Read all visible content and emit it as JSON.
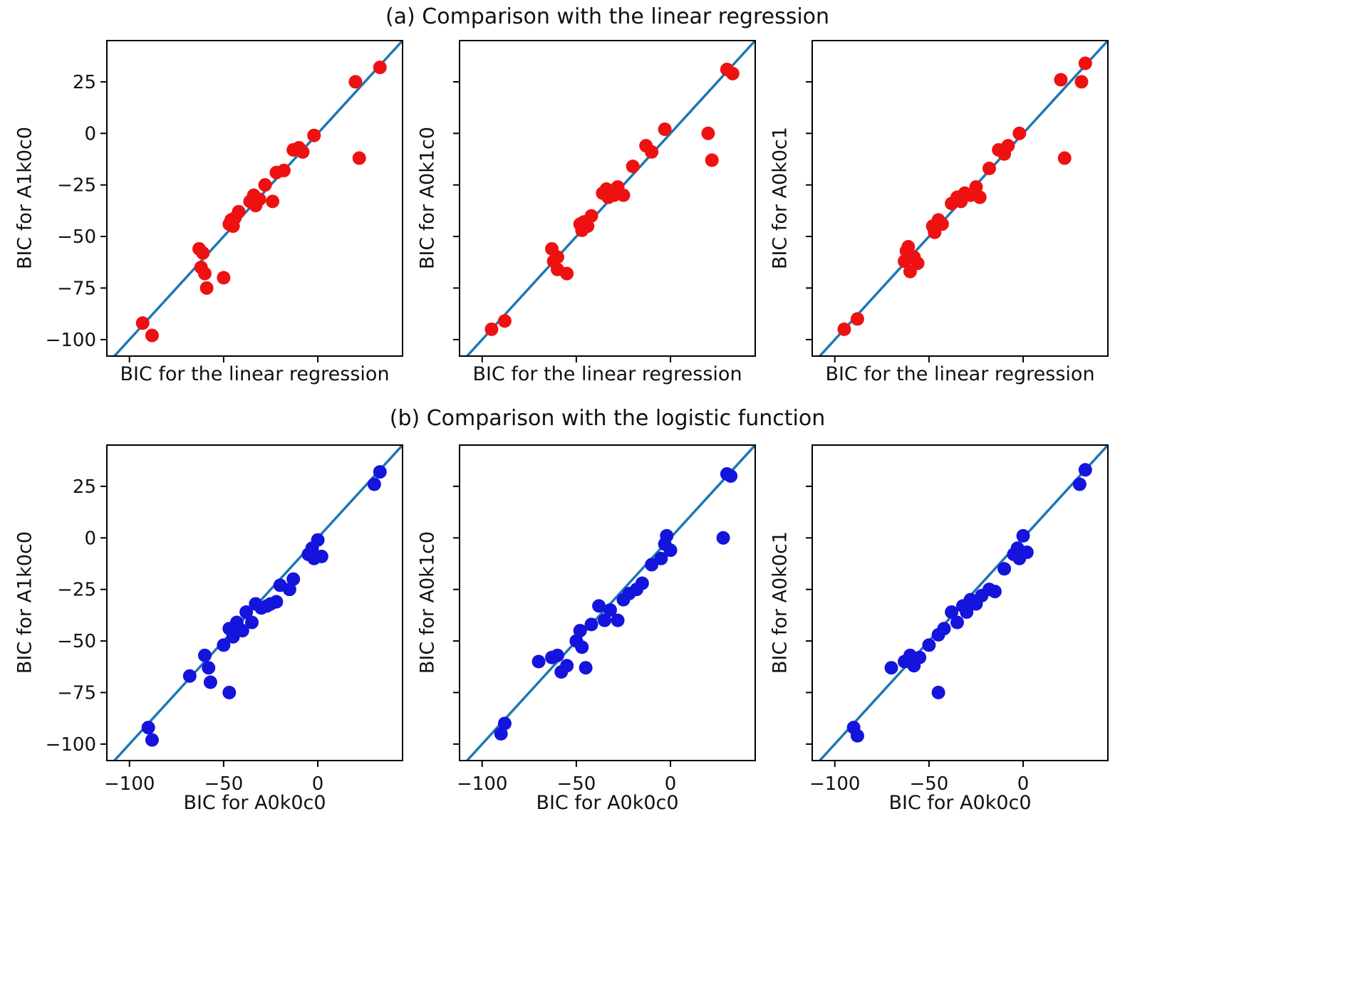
{
  "figure": {
    "row_a_title": "(a) Comparison with the linear regression",
    "row_b_title": "(b) Comparison with the logistic function",
    "background": "#ffffff"
  },
  "style": {
    "line_color": "#1f77b4",
    "red_marker": "#ee1111",
    "blue_marker": "#1414dd",
    "axis_color": "#000000"
  },
  "chart_data": [
    {
      "type": "scatter",
      "panel": "a1",
      "xlabel": "BIC for the linear regression",
      "ylabel": "BIC for A1k0c0",
      "marker_color": "#ee1111",
      "identity_line": true,
      "xlim": [
        -112,
        45
      ],
      "ylim": [
        -108,
        45
      ],
      "xticks": [
        -100,
        -50,
        0
      ],
      "yticks": [
        25,
        0,
        -25,
        -50,
        -75,
        -100
      ],
      "show_x_ticklabels": false,
      "show_y_ticklabels": true,
      "points": [
        [
          -93,
          -92
        ],
        [
          -88,
          -98
        ],
        [
          -63,
          -56
        ],
        [
          -61,
          -58
        ],
        [
          -62,
          -65
        ],
        [
          -60,
          -68
        ],
        [
          -59,
          -75
        ],
        [
          -50,
          -70
        ],
        [
          -47,
          -44
        ],
        [
          -46,
          -42
        ],
        [
          -45,
          -45
        ],
        [
          -44,
          -41
        ],
        [
          -42,
          -38
        ],
        [
          -36,
          -33
        ],
        [
          -34,
          -30
        ],
        [
          -33,
          -35
        ],
        [
          -31,
          -32
        ],
        [
          -28,
          -25
        ],
        [
          -24,
          -33
        ],
        [
          -22,
          -19
        ],
        [
          -18,
          -18
        ],
        [
          -13,
          -8
        ],
        [
          -10,
          -7
        ],
        [
          -8,
          -9
        ],
        [
          -2,
          -1
        ],
        [
          20,
          25
        ],
        [
          22,
          -12
        ],
        [
          33,
          32
        ]
      ]
    },
    {
      "type": "scatter",
      "panel": "a2",
      "xlabel": "BIC for the linear regression",
      "ylabel": "BIC for A0k1c0",
      "marker_color": "#ee1111",
      "identity_line": true,
      "xlim": [
        -112,
        45
      ],
      "ylim": [
        -108,
        45
      ],
      "xticks": [
        -100,
        -50,
        0
      ],
      "yticks": [
        25,
        0,
        -25,
        -50,
        -75,
        -100
      ],
      "show_x_ticklabels": false,
      "show_y_ticklabels": false,
      "points": [
        [
          -95,
          -95
        ],
        [
          -88,
          -91
        ],
        [
          -63,
          -56
        ],
        [
          -62,
          -62
        ],
        [
          -60,
          -60
        ],
        [
          -60,
          -66
        ],
        [
          -55,
          -68
        ],
        [
          -48,
          -44
        ],
        [
          -47,
          -47
        ],
        [
          -46,
          -43
        ],
        [
          -44,
          -45
        ],
        [
          -42,
          -40
        ],
        [
          -36,
          -29
        ],
        [
          -34,
          -27
        ],
        [
          -33,
          -31
        ],
        [
          -32,
          -28
        ],
        [
          -30,
          -30
        ],
        [
          -28,
          -26
        ],
        [
          -25,
          -30
        ],
        [
          -20,
          -16
        ],
        [
          -13,
          -6
        ],
        [
          -10,
          -9
        ],
        [
          -3,
          2
        ],
        [
          20,
          0
        ],
        [
          22,
          -13
        ],
        [
          30,
          31
        ],
        [
          33,
          29
        ]
      ]
    },
    {
      "type": "scatter",
      "panel": "a3",
      "xlabel": "BIC for the linear regression",
      "ylabel": "BIC for A0k0c1",
      "marker_color": "#ee1111",
      "identity_line": true,
      "xlim": [
        -112,
        45
      ],
      "ylim": [
        -108,
        45
      ],
      "xticks": [
        -100,
        -50,
        0
      ],
      "yticks": [
        25,
        0,
        -25,
        -50,
        -75,
        -100
      ],
      "show_x_ticklabels": false,
      "show_y_ticklabels": false,
      "points": [
        [
          -95,
          -95
        ],
        [
          -88,
          -90
        ],
        [
          -63,
          -62
        ],
        [
          -62,
          -57
        ],
        [
          -61,
          -55
        ],
        [
          -60,
          -67
        ],
        [
          -58,
          -60
        ],
        [
          -56,
          -63
        ],
        [
          -48,
          -45
        ],
        [
          -47,
          -48
        ],
        [
          -45,
          -42
        ],
        [
          -43,
          -44
        ],
        [
          -38,
          -34
        ],
        [
          -35,
          -31
        ],
        [
          -33,
          -33
        ],
        [
          -31,
          -29
        ],
        [
          -28,
          -30
        ],
        [
          -25,
          -26
        ],
        [
          -23,
          -31
        ],
        [
          -18,
          -17
        ],
        [
          -13,
          -8
        ],
        [
          -10,
          -10
        ],
        [
          -8,
          -6
        ],
        [
          -2,
          0
        ],
        [
          20,
          26
        ],
        [
          31,
          25
        ],
        [
          33,
          34
        ],
        [
          22,
          -12
        ]
      ]
    },
    {
      "type": "scatter",
      "panel": "b1",
      "xlabel": "BIC for A0k0c0",
      "ylabel": "BIC for A1k0c0",
      "marker_color": "#1414dd",
      "identity_line": true,
      "xlim": [
        -112,
        45
      ],
      "ylim": [
        -108,
        45
      ],
      "xticks": [
        -100,
        -50,
        0
      ],
      "yticks": [
        25,
        0,
        -25,
        -50,
        -75,
        -100
      ],
      "show_x_ticklabels": true,
      "show_y_ticklabels": true,
      "points": [
        [
          -90,
          -92
        ],
        [
          -88,
          -98
        ],
        [
          -68,
          -67
        ],
        [
          -60,
          -57
        ],
        [
          -58,
          -63
        ],
        [
          -57,
          -70
        ],
        [
          -47,
          -75
        ],
        [
          -50,
          -52
        ],
        [
          -47,
          -44
        ],
        [
          -45,
          -48
        ],
        [
          -43,
          -41
        ],
        [
          -40,
          -45
        ],
        [
          -38,
          -36
        ],
        [
          -35,
          -41
        ],
        [
          -33,
          -32
        ],
        [
          -30,
          -34
        ],
        [
          -27,
          -33
        ],
        [
          -25,
          -32
        ],
        [
          -22,
          -31
        ],
        [
          -20,
          -23
        ],
        [
          -15,
          -25
        ],
        [
          -13,
          -20
        ],
        [
          -5,
          -8
        ],
        [
          -3,
          -5
        ],
        [
          -2,
          -10
        ],
        [
          0,
          -1
        ],
        [
          2,
          -9
        ],
        [
          30,
          26
        ],
        [
          33,
          32
        ]
      ]
    },
    {
      "type": "scatter",
      "panel": "b2",
      "xlabel": "BIC for A0k0c0",
      "ylabel": "BIC for A0k1c0",
      "marker_color": "#1414dd",
      "identity_line": true,
      "xlim": [
        -112,
        45
      ],
      "ylim": [
        -108,
        45
      ],
      "xticks": [
        -100,
        -50,
        0
      ],
      "yticks": [
        25,
        0,
        -25,
        -50,
        -75,
        -100
      ],
      "show_x_ticklabels": true,
      "show_y_ticklabels": false,
      "points": [
        [
          -90,
          -95
        ],
        [
          -88,
          -90
        ],
        [
          -70,
          -60
        ],
        [
          -63,
          -58
        ],
        [
          -60,
          -57
        ],
        [
          -58,
          -65
        ],
        [
          -55,
          -62
        ],
        [
          -50,
          -50
        ],
        [
          -48,
          -45
        ],
        [
          -47,
          -53
        ],
        [
          -45,
          -63
        ],
        [
          -42,
          -42
        ],
        [
          -38,
          -33
        ],
        [
          -35,
          -40
        ],
        [
          -32,
          -35
        ],
        [
          -28,
          -40
        ],
        [
          -25,
          -30
        ],
        [
          -22,
          -27
        ],
        [
          -18,
          -25
        ],
        [
          -15,
          -22
        ],
        [
          -10,
          -13
        ],
        [
          -5,
          -10
        ],
        [
          -3,
          -3
        ],
        [
          -2,
          1
        ],
        [
          0,
          -6
        ],
        [
          28,
          0
        ],
        [
          30,
          31
        ],
        [
          32,
          30
        ]
      ]
    },
    {
      "type": "scatter",
      "panel": "b3",
      "xlabel": "BIC for A0k0c0",
      "ylabel": "BIC for A0k0c1",
      "marker_color": "#1414dd",
      "identity_line": true,
      "xlim": [
        -112,
        45
      ],
      "ylim": [
        -108,
        45
      ],
      "xticks": [
        -100,
        -50,
        0
      ],
      "yticks": [
        25,
        0,
        -25,
        -50,
        -75,
        -100
      ],
      "show_x_ticklabels": true,
      "show_y_ticklabels": false,
      "points": [
        [
          -90,
          -92
        ],
        [
          -88,
          -96
        ],
        [
          -70,
          -63
        ],
        [
          -63,
          -60
        ],
        [
          -60,
          -57
        ],
        [
          -58,
          -62
        ],
        [
          -55,
          -58
        ],
        [
          -50,
          -52
        ],
        [
          -45,
          -75
        ],
        [
          -45,
          -47
        ],
        [
          -42,
          -44
        ],
        [
          -38,
          -36
        ],
        [
          -35,
          -41
        ],
        [
          -32,
          -33
        ],
        [
          -30,
          -36
        ],
        [
          -28,
          -30
        ],
        [
          -25,
          -32
        ],
        [
          -22,
          -28
        ],
        [
          -18,
          -25
        ],
        [
          -15,
          -26
        ],
        [
          -10,
          -15
        ],
        [
          -5,
          -8
        ],
        [
          -3,
          -5
        ],
        [
          -2,
          -10
        ],
        [
          0,
          1
        ],
        [
          2,
          -7
        ],
        [
          30,
          26
        ],
        [
          33,
          33
        ]
      ]
    }
  ]
}
